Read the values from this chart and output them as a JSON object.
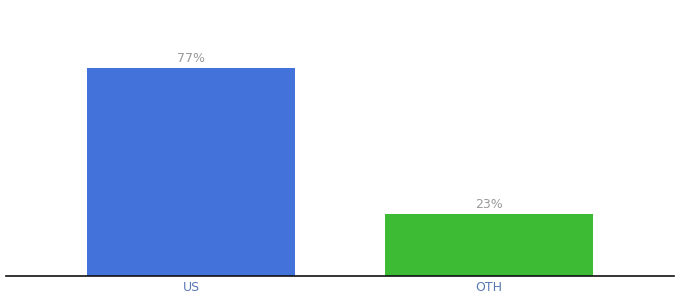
{
  "categories": [
    "US",
    "OTH"
  ],
  "values": [
    77,
    23
  ],
  "bar_colors": [
    "#4472db",
    "#3dbb35"
  ],
  "label_texts": [
    "77%",
    "23%"
  ],
  "ylim": [
    0,
    100
  ],
  "background_color": "#ffffff",
  "bar_width": 0.28,
  "label_fontsize": 9,
  "tick_fontsize": 9,
  "tick_color": "#5a7ab5",
  "label_color": "#999999",
  "x_positions": [
    0.3,
    0.7
  ]
}
